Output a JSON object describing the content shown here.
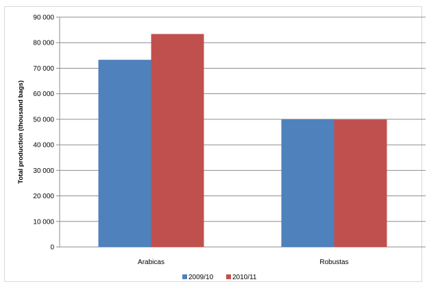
{
  "chart_data": {
    "type": "bar",
    "categories": [
      "Arabicas",
      "Robustas"
    ],
    "series": [
      {
        "name": "2009/10",
        "values": [
          73300,
          50000
        ],
        "color": "#4f81bd"
      },
      {
        "name": "2010/11",
        "values": [
          83400,
          49900
        ],
        "color": "#c0504d"
      }
    ],
    "ylabel": "Total production (thousand bags)",
    "ylim": [
      0,
      90000
    ],
    "yticks": [
      0,
      10000,
      20000,
      30000,
      40000,
      50000,
      60000,
      70000,
      80000,
      90000
    ],
    "ytick_labels": [
      "0",
      "10 000",
      "20 000",
      "30 000",
      "40 000",
      "50 000",
      "60 000",
      "70 000",
      "80 000",
      "90 000"
    ],
    "grid": true,
    "legend": "bottom"
  }
}
